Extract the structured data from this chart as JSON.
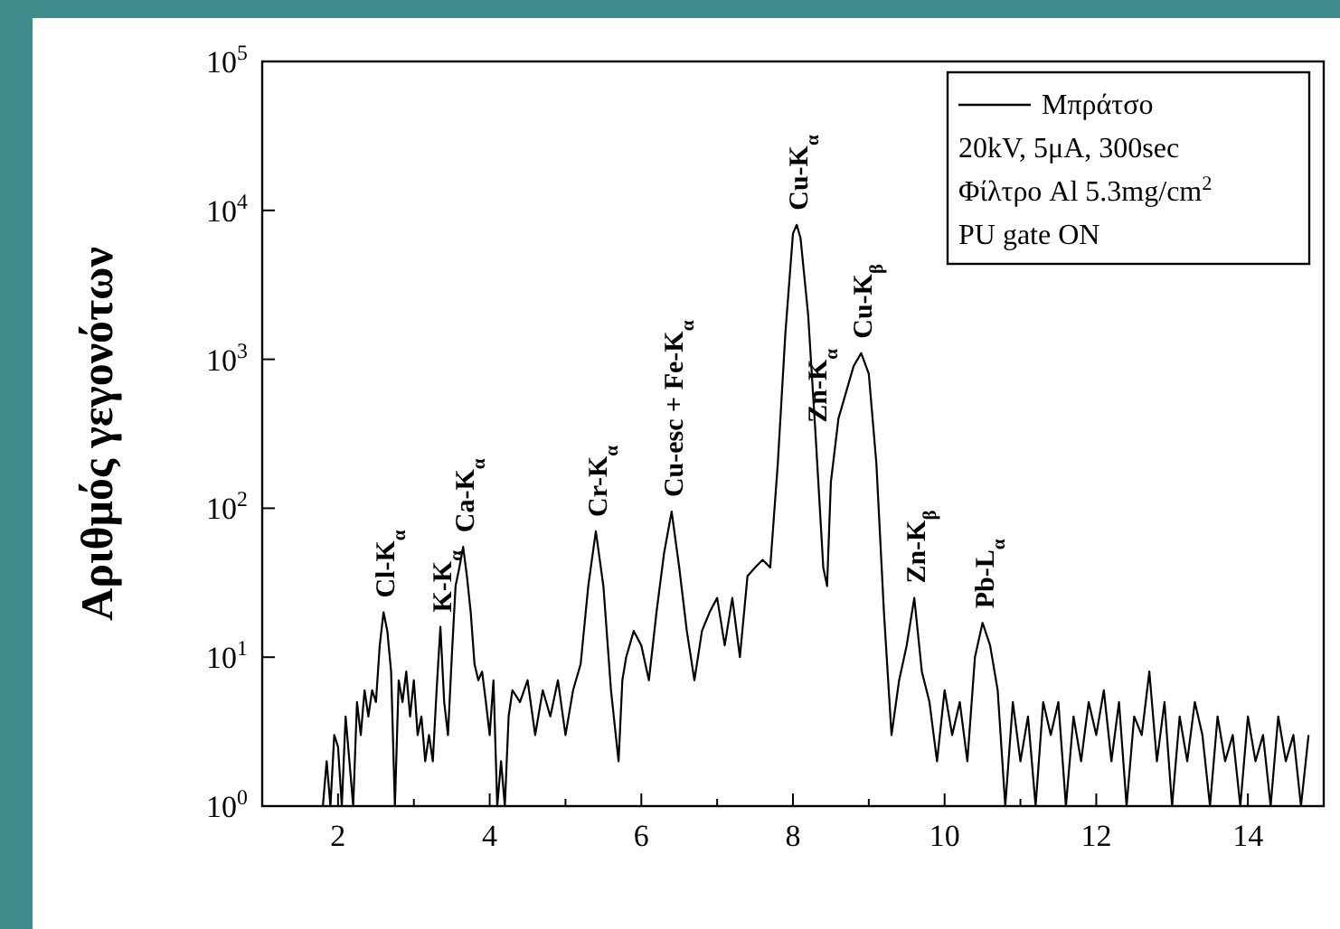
{
  "chart_data": {
    "type": "line",
    "ylabel": "Αριθμός γεγονότων",
    "log": "y",
    "legend": "top right",
    "grid": false,
    "line_style": "solid",
    "xlim": [
      1,
      15
    ],
    "xticks": [
      2,
      {
        "value": 3,
        "label": null
      },
      4,
      {
        "value": 5,
        "label": null
      },
      6,
      {
        "value": 7,
        "label": null
      },
      8,
      {
        "value": 9,
        "label": null
      },
      10,
      {
        "value": 11,
        "label": null
      },
      12,
      {
        "value": 13,
        "label": null
      },
      14
    ],
    "ylim": [
      1,
      100000
    ],
    "yticks": [
      {
        "value": 1,
        "label": "10$^{0}$"
      },
      {
        "value": 10,
        "label": "10$^{1}$"
      },
      {
        "value": 100,
        "label": "10$^{2}$"
      },
      {
        "value": 1000,
        "label": "10$^{3}$"
      },
      {
        "value": 10000,
        "label": "10$^{4}$"
      },
      {
        "value": 100000,
        "label": "10$^{5}$"
      }
    ],
    "series": [
      {
        "name": "Μπράτσο",
        "color": "#000000",
        "x": [
          1.8,
          1.85,
          1.9,
          1.95,
          2.0,
          2.05,
          2.1,
          2.15,
          2.2,
          2.25,
          2.3,
          2.35,
          2.4,
          2.45,
          2.5,
          2.55,
          2.6,
          2.65,
          2.7,
          2.75,
          2.8,
          2.85,
          2.9,
          2.95,
          3.0,
          3.05,
          3.1,
          3.15,
          3.2,
          3.25,
          3.3,
          3.35,
          3.4,
          3.45,
          3.5,
          3.55,
          3.6,
          3.65,
          3.7,
          3.75,
          3.8,
          3.85,
          3.9,
          3.95,
          4.0,
          4.05,
          4.1,
          4.15,
          4.2,
          4.25,
          4.3,
          4.4,
          4.5,
          4.6,
          4.7,
          4.8,
          4.9,
          5.0,
          5.1,
          5.2,
          5.3,
          5.4,
          5.5,
          5.6,
          5.7,
          5.75,
          5.8,
          5.9,
          6.0,
          6.1,
          6.2,
          6.3,
          6.4,
          6.5,
          6.6,
          6.7,
          6.8,
          6.9,
          7.0,
          7.1,
          7.2,
          7.3,
          7.4,
          7.5,
          7.6,
          7.7,
          7.8,
          7.9,
          8.0,
          8.05,
          8.1,
          8.2,
          8.3,
          8.4,
          8.45,
          8.5,
          8.6,
          8.7,
          8.8,
          8.9,
          9.0,
          9.1,
          9.2,
          9.3,
          9.4,
          9.5,
          9.6,
          9.7,
          9.8,
          9.9,
          10.0,
          10.1,
          10.2,
          10.3,
          10.4,
          10.5,
          10.6,
          10.7,
          10.8,
          10.9,
          11.0,
          11.1,
          11.2,
          11.3,
          11.4,
          11.5,
          11.6,
          11.7,
          11.8,
          11.9,
          12.0,
          12.1,
          12.2,
          12.3,
          12.4,
          12.5,
          12.6,
          12.7,
          12.8,
          12.9,
          13.0,
          13.1,
          13.2,
          13.3,
          13.4,
          13.5,
          13.6,
          13.7,
          13.8,
          13.9,
          14.0,
          14.1,
          14.2,
          14.3,
          14.4,
          14.5,
          14.6,
          14.7,
          14.8
        ],
        "values": [
          1,
          2,
          1,
          3,
          2.5,
          1,
          4,
          2,
          1,
          5,
          3,
          6,
          4,
          6,
          5,
          12,
          20,
          15,
          8,
          1,
          7,
          5,
          8,
          4,
          7,
          3,
          4,
          2,
          3,
          2,
          6,
          16,
          5,
          3,
          10,
          30,
          40,
          55,
          35,
          20,
          9,
          7,
          8,
          5,
          3,
          7,
          1,
          2,
          1,
          4,
          6,
          5,
          7,
          3,
          6,
          4,
          7,
          3,
          6,
          9,
          30,
          70,
          30,
          6,
          2,
          7,
          10,
          15,
          12,
          7,
          20,
          50,
          95,
          40,
          15,
          7,
          15,
          20,
          25,
          12,
          25,
          10,
          35,
          40,
          45,
          40,
          200,
          1500,
          7000,
          8000,
          6500,
          2000,
          300,
          40,
          30,
          150,
          400,
          600,
          900,
          1100,
          800,
          200,
          20,
          3,
          7,
          12,
          25,
          8,
          5,
          2,
          6,
          3,
          5,
          2,
          10,
          17,
          12,
          6,
          1,
          5,
          2,
          4,
          1,
          5,
          3,
          5,
          1,
          4,
          2,
          5,
          3,
          6,
          2,
          5,
          1,
          4,
          3,
          8,
          2,
          5,
          1,
          4,
          2,
          5,
          3,
          1,
          4,
          2,
          3,
          1,
          4,
          2,
          3,
          1,
          4,
          2,
          3,
          1,
          3
        ]
      }
    ],
    "annotations": [
      "20kV, 5μA, 300sec",
      "Φίλτρο Al 5.3mg/cm$^{2}$",
      "PU gate ON",
      {
        "text": "Cl-K$_{α}$",
        "x": 2.6,
        "y": 20
      },
      {
        "text": "K-K$_{α}$",
        "x": 3.35,
        "y": 16
      },
      {
        "text": "Ca-K$_{α}$",
        "x": 3.65,
        "y": 55
      },
      {
        "text": "Cr-K$_{α}$",
        "x": 5.4,
        "y": 70
      },
      {
        "text": "Cu-esc + Fe-K$_{α}$",
        "x": 6.4,
        "y": 95
      },
      {
        "text": "Cu-K$_{α}$",
        "x": 8.05,
        "y": 8000
      },
      {
        "text": "Zn-K$_{α}$",
        "x": 8.3,
        "y": 300
      },
      {
        "text": "Cu-K$_{β}$",
        "x": 8.9,
        "y": 1100
      },
      {
        "text": "Zn-K$_{β}$",
        "x": 9.6,
        "y": 25
      },
      {
        "text": "Pb-L$_{α}$",
        "x": 10.5,
        "y": 17
      }
    ]
  }
}
